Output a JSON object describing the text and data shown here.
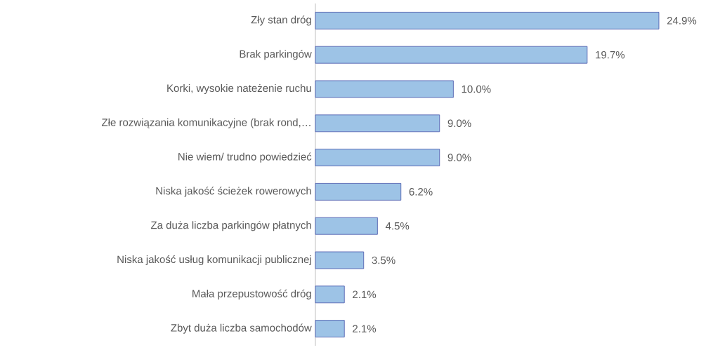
{
  "chart_data": {
    "type": "bar",
    "orientation": "horizontal",
    "color": "#9dc3e6",
    "categories": [
      "Zły stan dróg",
      "Brak parkingów",
      "Korki, wysokie nateżenie ruchu",
      "Złe rozwiązania komunikacyjne (brak rond,…",
      "Nie wiem/ trudno powiedzieć",
      "Niska jakość ścieżek rowerowych",
      "Za duża liczba parkingów płatnych",
      "Niska jakość usług komunikacji publicznej",
      "Mała przepustowość dróg",
      "Zbyt duża liczba samochodów"
    ],
    "values": [
      24.9,
      19.7,
      10.0,
      9.0,
      9.0,
      6.2,
      4.5,
      3.5,
      2.1,
      2.1
    ],
    "value_labels": [
      "24.9%",
      "19.7%",
      "10.0%",
      "9.0%",
      "9.0%",
      "6.2%",
      "4.5%",
      "3.5%",
      "2.1%",
      "2.1%"
    ]
  }
}
